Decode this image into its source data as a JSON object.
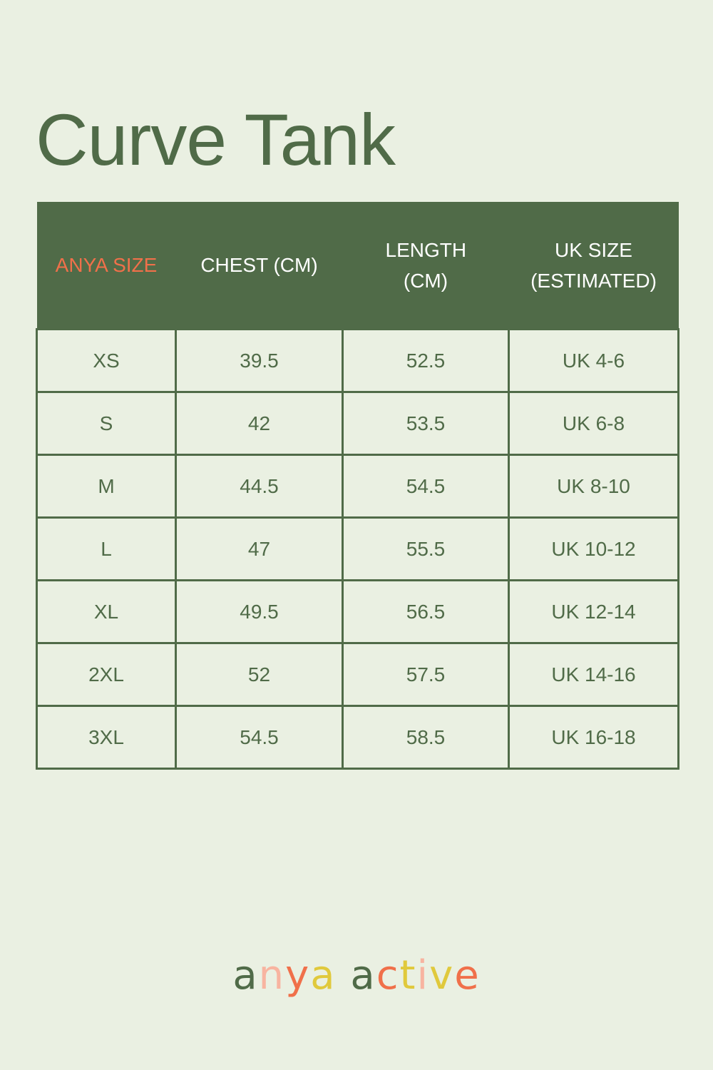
{
  "title": "Curve Tank",
  "colors": {
    "primary": "#506b48",
    "accent": "#f0704a",
    "background": "#eaf0e2"
  },
  "table": {
    "headers": [
      "ANYA SIZE",
      "CHEST (CM)",
      "LENGTH (CM)",
      "UK SIZE (ESTIMATED)"
    ],
    "rows": [
      [
        "XS",
        "39.5",
        "52.5",
        "UK 4-6"
      ],
      [
        "S",
        "42",
        "53.5",
        "UK 6-8"
      ],
      [
        "M",
        "44.5",
        "54.5",
        "UK 8-10"
      ],
      [
        "L",
        "47",
        "55.5",
        "UK 10-12"
      ],
      [
        "XL",
        "49.5",
        "56.5",
        "UK 12-14"
      ],
      [
        "2XL",
        "52",
        "57.5",
        "UK 14-16"
      ],
      [
        "3XL",
        "54.5",
        "58.5",
        "UK 16-18"
      ]
    ]
  },
  "logo": "anya active"
}
